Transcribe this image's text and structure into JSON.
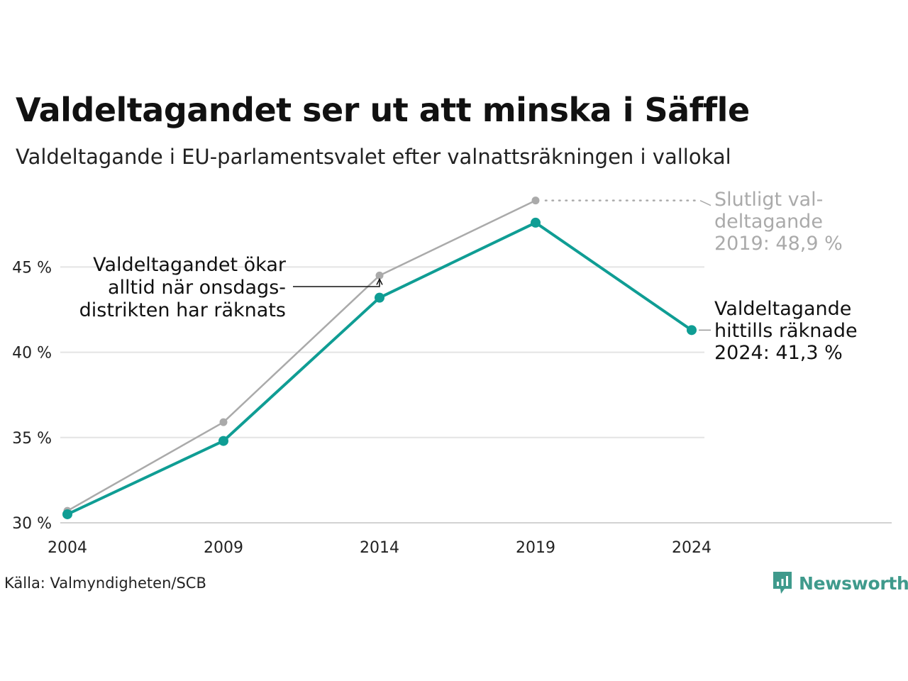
{
  "header": {
    "title": "Valdeltagandet ser ut att minska i Säffle",
    "subtitle": "Valdeltagande i EU-parlamentsvalet efter valnattsräkningen i vallokal"
  },
  "footer": {
    "source": "Källa: Valmyndigheten/SCB",
    "brand": "Newsworthy"
  },
  "colors": {
    "current": "#0f9d94",
    "final": "#aaaaaa",
    "grid": "#e4e4e4",
    "brand": "#3f9a8c"
  },
  "chart_data": {
    "type": "line",
    "x": [
      2004,
      2009,
      2014,
      2019,
      2024
    ],
    "xlim": [
      2004,
      2024
    ],
    "ylim": [
      30,
      49
    ],
    "y_ticks": [
      30,
      35,
      40,
      45
    ],
    "y_tick_labels": [
      "30 %",
      "35 %",
      "40 %",
      "45 %"
    ],
    "x_tick_labels": [
      "2004",
      "2009",
      "2014",
      "2019",
      "2024"
    ],
    "grid": true,
    "series": [
      {
        "key": "final",
        "values": [
          30.7,
          35.9,
          44.5,
          48.9,
          null
        ]
      },
      {
        "key": "current",
        "values": [
          30.5,
          34.8,
          43.2,
          47.6,
          41.3
        ]
      }
    ],
    "annotations": {
      "mid": [
        "Valdeltagandet ökar",
        "alltid när onsdags-",
        "distrikten har räknats"
      ],
      "final": [
        "Slutligt val-",
        "deltagande",
        "2019: 48,9 %"
      ],
      "current": [
        "Valdeltagande",
        "hittills räknade",
        "2024: 41,3 %"
      ]
    }
  }
}
